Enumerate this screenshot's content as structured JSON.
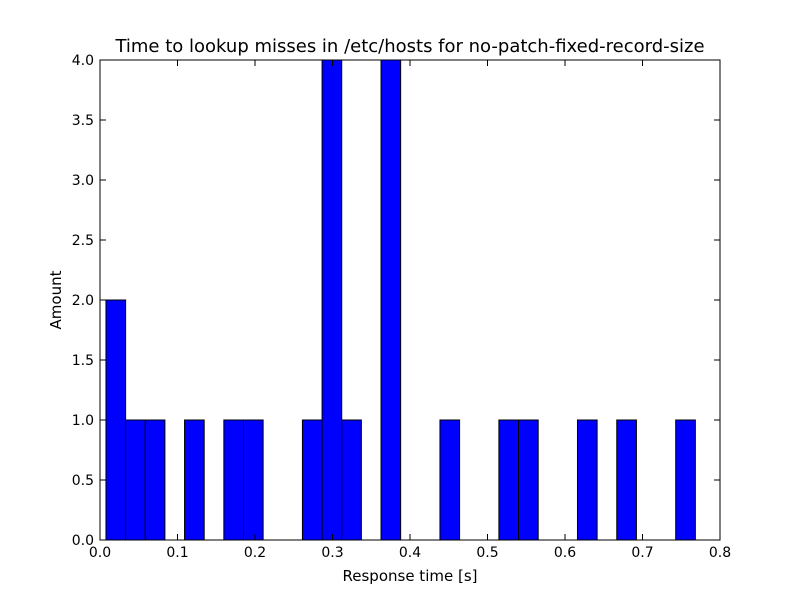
{
  "chart_data": {
    "type": "bar",
    "title": "Time to lookup misses in /etc/hosts for no-patch-fixed-record-size",
    "xlabel": "Response time [s]",
    "ylabel": "Amount",
    "xlim": [
      0.0,
      0.8
    ],
    "ylim": [
      0.0,
      4.0
    ],
    "xticks": [
      "0.0",
      "0.1",
      "0.2",
      "0.3",
      "0.4",
      "0.5",
      "0.6",
      "0.7",
      "0.8"
    ],
    "yticks": [
      "0.0",
      "0.5",
      "1.0",
      "1.5",
      "2.0",
      "2.5",
      "3.0",
      "3.5",
      "4.0"
    ],
    "grid": false,
    "bar_color": "#0000ff",
    "bin_start": 0.0077,
    "bin_width": 0.02535,
    "values": [
      2,
      1,
      1,
      0,
      1,
      0,
      1,
      1,
      0,
      0,
      1,
      4,
      1,
      0,
      4,
      0,
      0,
      1,
      0,
      0,
      1,
      1,
      0,
      0,
      1,
      0,
      1,
      0,
      0,
      1
    ]
  }
}
